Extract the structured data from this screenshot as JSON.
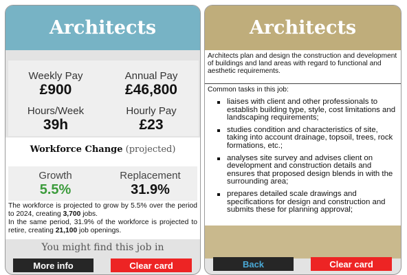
{
  "left_card": {
    "title": "Architects",
    "pay": {
      "weekly_label": "Weekly Pay",
      "weekly_value": "£900",
      "annual_label": "Annual Pay",
      "annual_value": "£46,800",
      "hours_label": "Hours/Week",
      "hours_value": "39h",
      "hourly_label": "Hourly Pay",
      "hourly_value": "£23"
    },
    "workforce": {
      "title": "Workforce Change",
      "qualifier": "(projected)",
      "growth_label": "Growth",
      "growth_value": "5.5%",
      "replacement_label": "Replacement",
      "replacement_value": "31.9%",
      "desc": {
        "p1_a": "The workforce is projected to grow by 5.5% over the period to 2024, creating ",
        "p1_b": "3,700",
        "p1_c": " jobs.",
        "p2_a": "In the same period, 31.9% of the workforce is projected to retire, creating ",
        "p2_b": "21,100",
        "p2_c": " job openings."
      }
    },
    "find_text": "You might find this job in",
    "more_info_label": "More info",
    "clear_card_label": "Clear card"
  },
  "right_card": {
    "title": "Architects",
    "description": "Architects plan and design the construction and development of buildings and land areas with regard to functional and aesthetic requirements.",
    "tasks_heading": "Common tasks in this job:",
    "tasks": [
      "liaises with client and other professionals to establish building type, style, cost limitations and landscaping requirements;",
      "studies condition and characteristics of site, taking into account drainage, topsoil, trees, rock formations, etc.;",
      "analyses site survey and advises client on development and construction details and ensures that proposed design blends in with the surrounding area;",
      "prepares detailed scale drawings and specifications for design and construction and submits these for planning approval;"
    ],
    "back_label": "Back",
    "clear_card_label": "Clear card"
  },
  "colors": {
    "left_header": "#77b3c5",
    "right_header": "#bfad7b",
    "growth_green": "#3b9b3b",
    "button_red": "#ed2424",
    "button_dark": "#262626",
    "back_text": "#4aa9d6"
  }
}
